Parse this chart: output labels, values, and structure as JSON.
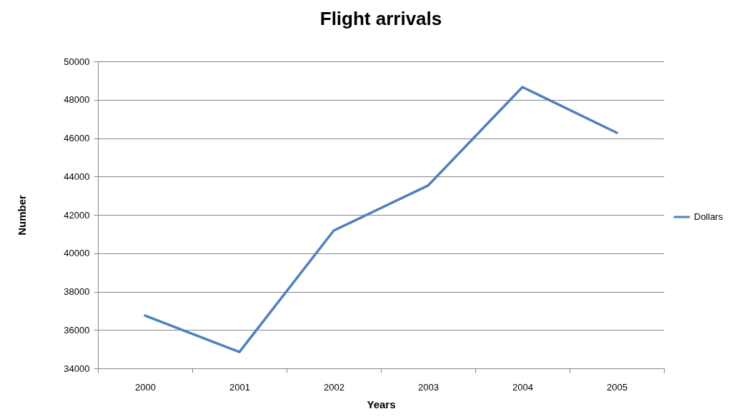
{
  "chart_data": {
    "type": "line",
    "title": "Flight arrivals",
    "xlabel": "Years",
    "ylabel": "Number",
    "categories": [
      "2000",
      "2001",
      "2002",
      "2003",
      "2004",
      "2005"
    ],
    "series": [
      {
        "name": "Dollars",
        "color": "#4f81bd",
        "values": [
          36750,
          34850,
          41180,
          43530,
          48660,
          46280
        ]
      }
    ],
    "ylim": [
      34000,
      50000
    ],
    "yticks": [
      34000,
      36000,
      38000,
      40000,
      42000,
      44000,
      46000,
      48000,
      50000
    ],
    "grid": "y",
    "legend": "right",
    "marker": "none",
    "line_style": "solid"
  }
}
